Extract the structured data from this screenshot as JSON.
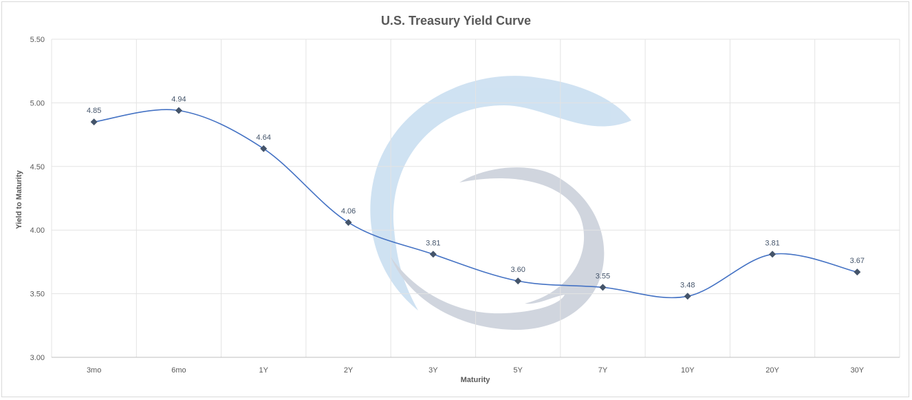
{
  "chart_data": {
    "type": "line",
    "title": "U.S. Treasury Yield Curve",
    "xlabel": "Maturity",
    "ylabel": "Yield to Maturity",
    "categories": [
      "3mo",
      "6mo",
      "1Y",
      "2Y",
      "3Y",
      "5Y",
      "7Y",
      "10Y",
      "20Y",
      "30Y"
    ],
    "series": [
      {
        "values": [
          4.85,
          4.94,
          4.64,
          4.06,
          3.81,
          3.6,
          3.55,
          3.48,
          3.81,
          3.67
        ],
        "labels": [
          "4.85",
          "4.94",
          "4.64",
          "4.06",
          "3.81",
          "3.60",
          "3.55",
          "3.48",
          "3.81",
          "3.67"
        ],
        "color": "#4472c4",
        "marker": "diamond",
        "marker_color": "#44546a",
        "smooth": true
      }
    ],
    "ylim": [
      3.0,
      5.5
    ],
    "yticks": [
      "3.00",
      "3.50",
      "4.00",
      "4.50",
      "5.00",
      "5.50"
    ],
    "ytick_values": [
      3.0,
      3.5,
      4.0,
      4.5,
      5.0,
      5.5
    ],
    "grid": true,
    "legend": "none"
  }
}
